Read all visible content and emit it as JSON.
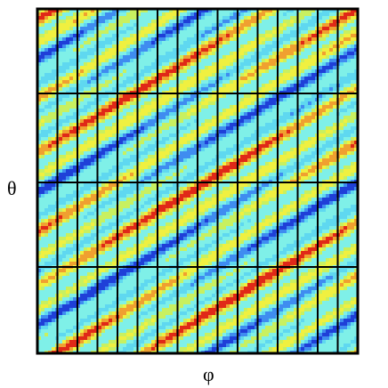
{
  "figure": {
    "x_label": "φ",
    "y_label": "θ"
  }
}
